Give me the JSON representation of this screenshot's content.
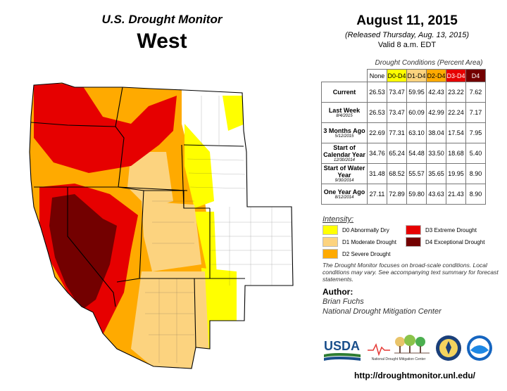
{
  "header": {
    "title": "U.S. Drought Monitor",
    "region": "West",
    "date": "August 11, 2015",
    "released": "(Released Thursday, Aug. 13, 2015)",
    "valid": "Valid  8 a.m. EDT"
  },
  "table": {
    "title": "Drought Conditions (Percent Area)",
    "columns": [
      "None",
      "D0-D4",
      "D1-D4",
      "D2-D4",
      "D3-D4",
      "D4"
    ],
    "rows": [
      {
        "label": "Current",
        "sublabel": "",
        "values": [
          "26.53",
          "73.47",
          "59.95",
          "42.43",
          "23.22",
          "7.62"
        ]
      },
      {
        "label": "Last Week",
        "sublabel": "8/4/2015",
        "values": [
          "26.53",
          "73.47",
          "60.09",
          "42.99",
          "22.24",
          "7.17"
        ]
      },
      {
        "label": "3 Months Ago",
        "sublabel": "5/12/2015",
        "values": [
          "22.69",
          "77.31",
          "63.10",
          "38.04",
          "17.54",
          "7.95"
        ]
      },
      {
        "label": "Start of Calendar Year",
        "sublabel": "12/30/2014",
        "values": [
          "34.76",
          "65.24",
          "54.48",
          "33.50",
          "18.68",
          "5.40"
        ]
      },
      {
        "label": "Start of Water Year",
        "sublabel": "9/30/2014",
        "values": [
          "31.48",
          "68.52",
          "55.57",
          "35.65",
          "19.95",
          "8.90"
        ]
      },
      {
        "label": "One Year Ago",
        "sublabel": "8/12/2014",
        "values": [
          "27.11",
          "72.89",
          "59.80",
          "43.63",
          "21.43",
          "8.90"
        ]
      }
    ]
  },
  "legend": {
    "title": "Intensity:",
    "items": [
      {
        "label": "D0 Abnormally Dry",
        "color": "#ffff00"
      },
      {
        "label": "D1 Moderate Drought",
        "color": "#fcd37f"
      },
      {
        "label": "D2 Severe Drought",
        "color": "#ffaa00"
      },
      {
        "label": "D3 Extreme Drought",
        "color": "#e60000"
      },
      {
        "label": "D4 Exceptional Drought",
        "color": "#730000"
      }
    ]
  },
  "note": "The Drought Monitor focuses on broad-scale conditions. Local conditions may vary. See accompanying text summary for forecast statements.",
  "author": {
    "heading": "Author:",
    "name": "Brian Fuchs",
    "org": "National Drought Mitigation Center"
  },
  "logos": {
    "usda": "USDA",
    "ndmc": "National Drought Mitigation Center"
  },
  "url": "http://droughtmonitor.unl.edu/"
}
